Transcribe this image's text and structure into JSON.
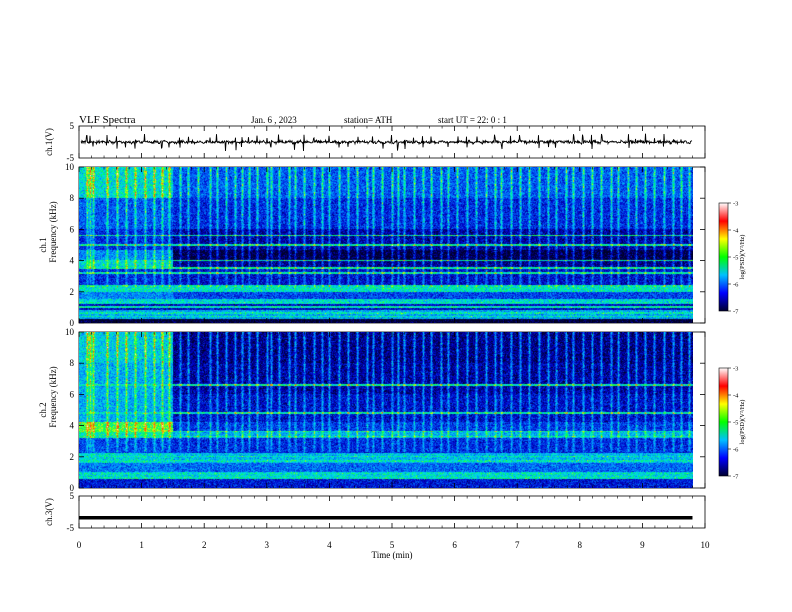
{
  "header": {
    "title": "VLF  Spectra",
    "date": "Jan.  6   , 2023",
    "station": "station= ATH",
    "start": "start  UT  =    22: 0    : 1"
  },
  "panels": {
    "ch1_wave": {
      "ylabel": "ch.1(V)",
      "ytick_top": "5",
      "ytick_bottom": "-5"
    },
    "ch1_spec": {
      "ylabel_ch": "ch.1",
      "ylabel": "Frequency  (kHz)",
      "yticks": [
        "10",
        "8",
        "6",
        "4",
        "2",
        "0"
      ]
    },
    "ch2_spec": {
      "ylabel_ch": "ch.2",
      "ylabel": "Frequency  (kHz)",
      "yticks": [
        "10",
        "8",
        "6",
        "4",
        "2",
        "0"
      ]
    },
    "ch3_wave": {
      "ylabel": "ch.3(V)",
      "ytick_top": "5",
      "ytick_bottom": "-5"
    }
  },
  "colorbar": {
    "label": "log(PSD)(V²/Hz)",
    "ticks": [
      "-3",
      "-4",
      "-5",
      "-6",
      "-7"
    ],
    "colors": [
      "#ffffff",
      "#ff0000",
      "#ffff00",
      "#00ff00",
      "#00c0ff",
      "#0000ff",
      "#000030"
    ]
  },
  "chart_data": {
    "type": "heatmap",
    "xlabel": "Time  (min)",
    "x_ticks": [
      "0",
      "1",
      "2",
      "3",
      "4",
      "5",
      "6",
      "7",
      "8",
      "9",
      "10"
    ],
    "xlim": [
      0,
      10
    ],
    "data_end_min": 9.8,
    "freq_ylim_khz": [
      0,
      10
    ],
    "volt_ylim": [
      -5,
      5
    ],
    "clim_logpsd": [
      -7,
      -3
    ],
    "ch1_mean_v": 0,
    "ch3_level_v": -1.8,
    "transition_time_min": 1.5,
    "ch1_bands": [
      {
        "f_low": 0.0,
        "f_high": 0.25,
        "logpsd_early": -7.0,
        "logpsd_late": -7.0
      },
      {
        "f_low": 0.25,
        "f_high": 0.8,
        "logpsd_early": -5.3,
        "logpsd_late": -5.3
      },
      {
        "f_low": 0.8,
        "f_high": 1.2,
        "logpsd_early": -6.3,
        "logpsd_late": -6.3
      },
      {
        "f_low": 1.2,
        "f_high": 1.5,
        "logpsd_early": -5.0,
        "logpsd_late": -5.0
      },
      {
        "f_low": 1.5,
        "f_high": 2.0,
        "logpsd_early": -5.5,
        "logpsd_late": -5.9
      },
      {
        "f_low": 2.0,
        "f_high": 2.4,
        "logpsd_early": -4.9,
        "logpsd_late": -4.9
      },
      {
        "f_low": 2.4,
        "f_high": 3.6,
        "logpsd_early": -6.1,
        "logpsd_late": -6.3
      },
      {
        "f_low": 3.6,
        "f_high": 4.0,
        "logpsd_early": -5.0,
        "logpsd_late": -6.6
      },
      {
        "f_low": 4.0,
        "f_high": 4.7,
        "logpsd_early": -5.5,
        "logpsd_late": -6.9
      },
      {
        "f_low": 4.7,
        "f_high": 6.0,
        "logpsd_early": -6.1,
        "logpsd_late": -6.5
      },
      {
        "f_low": 6.0,
        "f_high": 8.0,
        "logpsd_early": -5.8,
        "logpsd_late": -6.1
      },
      {
        "f_low": 8.0,
        "f_high": 10.0,
        "logpsd_early": -5.0,
        "logpsd_late": -5.8
      }
    ],
    "ch2_bands": [
      {
        "f_low": 0.0,
        "f_high": 0.6,
        "logpsd_early": -6.2,
        "logpsd_late": -6.2
      },
      {
        "f_low": 0.6,
        "f_high": 1.0,
        "logpsd_early": -5.0,
        "logpsd_late": -5.0
      },
      {
        "f_low": 1.0,
        "f_high": 1.6,
        "logpsd_early": -5.6,
        "logpsd_late": -5.7
      },
      {
        "f_low": 1.6,
        "f_high": 2.2,
        "logpsd_early": -5.0,
        "logpsd_late": -5.2
      },
      {
        "f_low": 2.2,
        "f_high": 3.2,
        "logpsd_early": -5.9,
        "logpsd_late": -6.1
      },
      {
        "f_low": 3.2,
        "f_high": 3.6,
        "logpsd_early": -4.8,
        "logpsd_late": -5.3
      },
      {
        "f_low": 3.6,
        "f_high": 4.2,
        "logpsd_early": -4.4,
        "logpsd_late": -6.0
      },
      {
        "f_low": 4.2,
        "f_high": 6.0,
        "logpsd_early": -5.3,
        "logpsd_late": -6.3
      },
      {
        "f_low": 6.0,
        "f_high": 8.0,
        "logpsd_early": -5.3,
        "logpsd_late": -6.5
      },
      {
        "f_low": 8.0,
        "f_high": 10.0,
        "logpsd_early": -5.1,
        "logpsd_late": -6.6
      }
    ],
    "ch1_lines_khz": [
      0.4,
      0.6,
      1.0,
      1.3,
      2.0,
      2.2,
      3.2,
      3.5,
      4.0,
      5.0,
      5.6
    ],
    "ch2_lines_khz": [
      0.6,
      0.9,
      1.7,
      2.0,
      3.3,
      3.6,
      4.8,
      6.6
    ],
    "sferic_times_min": [
      0.13,
      0.18,
      0.23,
      0.45,
      0.6,
      0.75,
      0.9,
      1.05,
      1.2,
      1.33,
      1.44,
      1.62,
      1.75,
      1.9,
      2.1,
      2.2,
      2.35,
      2.5,
      2.6,
      2.72,
      2.85,
      3.0,
      3.07,
      3.2,
      3.35,
      3.45,
      3.6,
      3.75,
      3.88,
      4.0,
      4.15,
      4.3,
      4.45,
      4.6,
      4.7,
      4.85,
      5.0,
      5.1,
      5.2,
      5.35,
      5.5,
      5.62,
      5.78,
      5.9,
      6.05,
      6.2,
      6.35,
      6.5,
      6.65,
      6.75,
      6.9,
      7.05,
      7.2,
      7.35,
      7.5,
      7.62,
      7.78,
      7.9,
      8.05,
      8.2,
      8.35,
      8.5,
      8.62,
      8.78,
      8.9,
      9.05,
      9.2,
      9.35,
      9.5,
      9.62,
      9.75
    ]
  }
}
